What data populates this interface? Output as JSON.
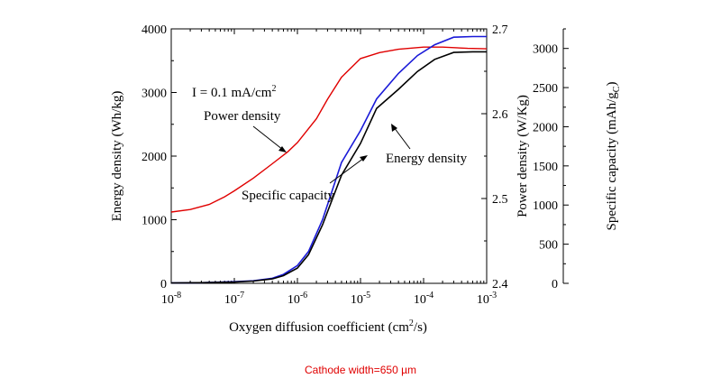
{
  "chart_data": {
    "type": "line",
    "xlabel_prefix": "Oxygen diffusion coefficient (cm",
    "xlabel_sup": "2",
    "xlabel_suffix": "/s)",
    "x_scale": "log",
    "xlim": [
      1e-08,
      0.001
    ],
    "x_ticks": [
      {
        "value": 1e-08,
        "base": "10",
        "exp": "-8"
      },
      {
        "value": 1e-07,
        "base": "10",
        "exp": "-7"
      },
      {
        "value": 1e-06,
        "base": "10",
        "exp": "-6"
      },
      {
        "value": 1e-05,
        "base": "10",
        "exp": "-5"
      },
      {
        "value": 0.0001,
        "base": "10",
        "exp": "-4"
      },
      {
        "value": 0.001,
        "base": "10",
        "exp": "-3"
      }
    ],
    "axes": {
      "energy": {
        "label": "Energy density (Wh/kg)",
        "range": [
          0,
          4000
        ],
        "ticks": [
          "0",
          "1000",
          "2000",
          "3000",
          "4000"
        ]
      },
      "power": {
        "label": "Power density (W/Kg)",
        "range": [
          2.4,
          2.7
        ],
        "ticks": [
          "2.4",
          "2.5",
          "2.6",
          "2.7"
        ]
      },
      "capacity": {
        "label_prefix": "Specific capacity (mAh/g",
        "label_sub": "C",
        "label_suffix": ")",
        "range": [
          0,
          3250
        ],
        "ticks": [
          "0",
          "500",
          "1000",
          "1500",
          "2000",
          "2500",
          "3000"
        ]
      }
    },
    "series": [
      {
        "name": "Power density",
        "axis": "power",
        "color": "#e00000",
        "x": [
          1e-08,
          2e-08,
          4e-08,
          7e-08,
          1e-07,
          2e-07,
          4e-07,
          7e-07,
          1e-06,
          2e-06,
          3e-06,
          5e-06,
          1e-05,
          2e-05,
          4e-05,
          0.0001,
          0.0002,
          0.0005,
          0.001
        ],
        "values": [
          2.484,
          2.487,
          2.493,
          2.502,
          2.509,
          2.524,
          2.541,
          2.555,
          2.566,
          2.594,
          2.617,
          2.643,
          2.665,
          2.672,
          2.676,
          2.6785,
          2.6785,
          2.677,
          2.6765
        ]
      },
      {
        "name": "Specific capacity",
        "axis": "energy",
        "color": "#1a1ad8",
        "x": [
          1e-08,
          3e-08,
          1e-07,
          2e-07,
          4e-07,
          6e-07,
          1e-06,
          1.5e-06,
          2.5e-06,
          5e-06,
          1e-05,
          1.8e-05,
          4e-05,
          8e-05,
          0.00015,
          0.0003,
          0.0006,
          0.001
        ],
        "values": [
          5,
          10,
          25,
          40,
          80,
          140,
          280,
          500,
          1000,
          1900,
          2400,
          2900,
          3300,
          3580,
          3750,
          3870,
          3880,
          3880
        ]
      },
      {
        "name": "Energy density",
        "axis": "energy",
        "color": "#000000",
        "x": [
          1e-08,
          3e-08,
          1e-07,
          2e-07,
          4e-07,
          6e-07,
          1e-06,
          1.5e-06,
          2.5e-06,
          5e-06,
          1e-05,
          1.8e-05,
          4e-05,
          8e-05,
          0.00015,
          0.0003,
          0.0006,
          0.001
        ],
        "values": [
          5,
          10,
          20,
          35,
          70,
          120,
          240,
          450,
          920,
          1700,
          2200,
          2750,
          3050,
          3330,
          3520,
          3630,
          3640,
          3640
        ]
      }
    ],
    "annotations": {
      "current_prefix": "I = 0.1 mA/cm",
      "current_sup": "2",
      "power_label": "Power density",
      "capacity_label": "Specific capacity",
      "energy_label": "Energy density"
    }
  },
  "caption": "Cathode width=650 µm"
}
